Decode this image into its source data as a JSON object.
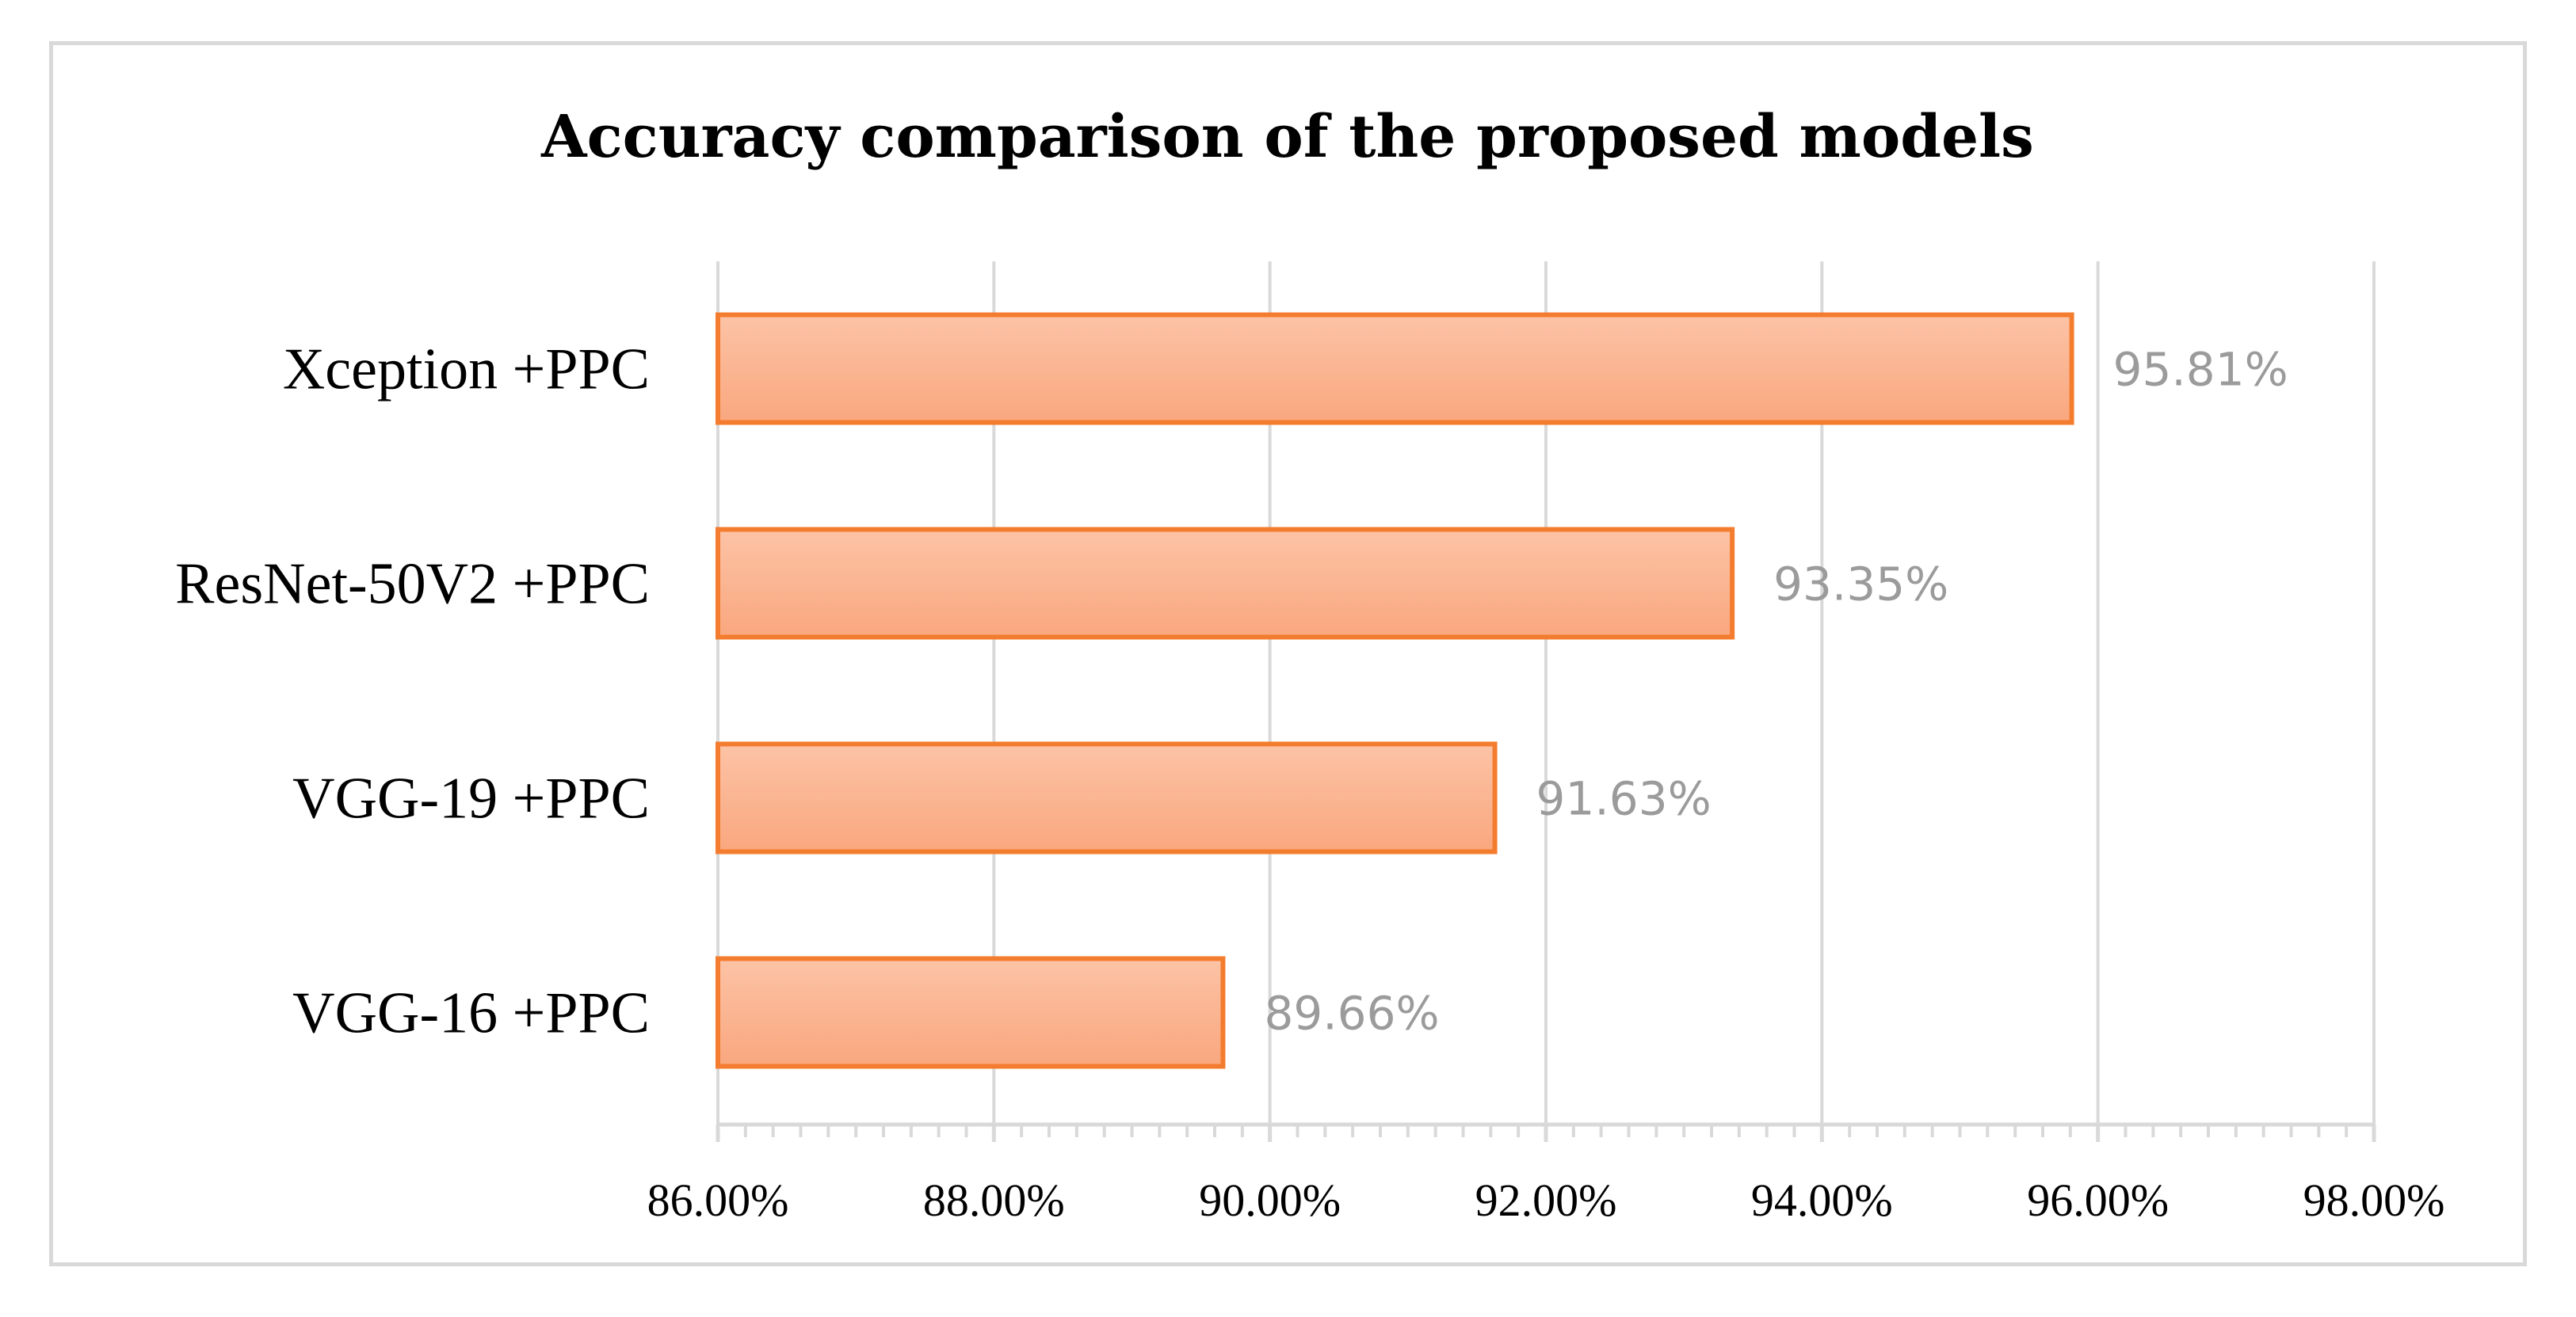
{
  "chart_data": {
    "type": "bar",
    "orientation": "horizontal",
    "title": "Accuracy comparison of the proposed models",
    "xlabel": "",
    "ylabel": "",
    "categories": [
      "Xception +PPC",
      "ResNet-50V2 +PPC",
      "VGG-19 +PPC",
      "VGG-16 +PPC"
    ],
    "values": [
      95.81,
      93.35,
      91.63,
      89.66
    ],
    "value_labels": [
      "95.81%",
      "93.35%",
      "91.63%",
      "89.66%"
    ],
    "xlim": [
      86,
      98
    ],
    "x_ticks": [
      86,
      88,
      90,
      92,
      94,
      96,
      98
    ],
    "x_tick_labels": [
      "86.00%",
      "88.00%",
      "90.00%",
      "92.00%",
      "94.00%",
      "96.00%",
      "98.00%"
    ],
    "grid": true,
    "legend": "none",
    "colors": {
      "bar_fill_top": "#fcc3a6",
      "bar_fill_bottom": "#f9a77e",
      "bar_stroke": "#f47c2e",
      "grid": "#d9d9d9",
      "data_label": "#9b9b9b"
    }
  }
}
